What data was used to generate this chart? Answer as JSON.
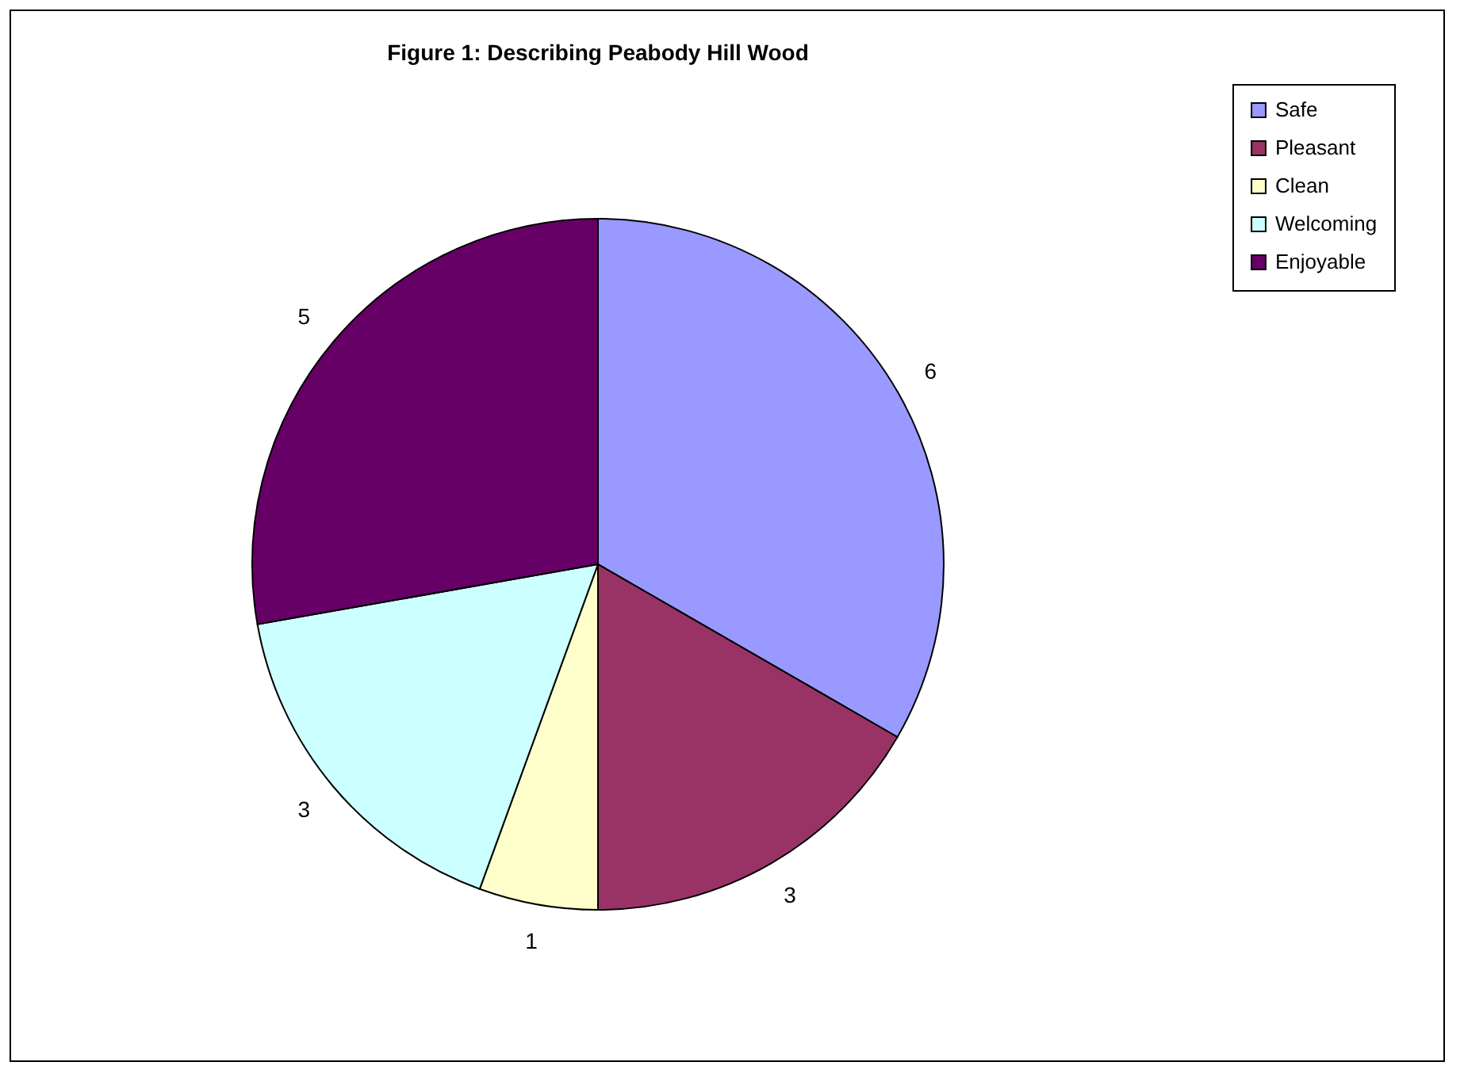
{
  "chart_data": {
    "type": "pie",
    "title": "Figure 1: Describing Peabody Hill Wood",
    "categories": [
      "Safe",
      "Pleasant",
      "Clean",
      "Welcoming",
      "Enjoyable"
    ],
    "values": [
      6,
      3,
      1,
      3,
      5
    ],
    "colors": [
      "#9999ff",
      "#993366",
      "#ffffcc",
      "#ccffff",
      "#660066"
    ],
    "data_labels": true,
    "legend": "right"
  }
}
